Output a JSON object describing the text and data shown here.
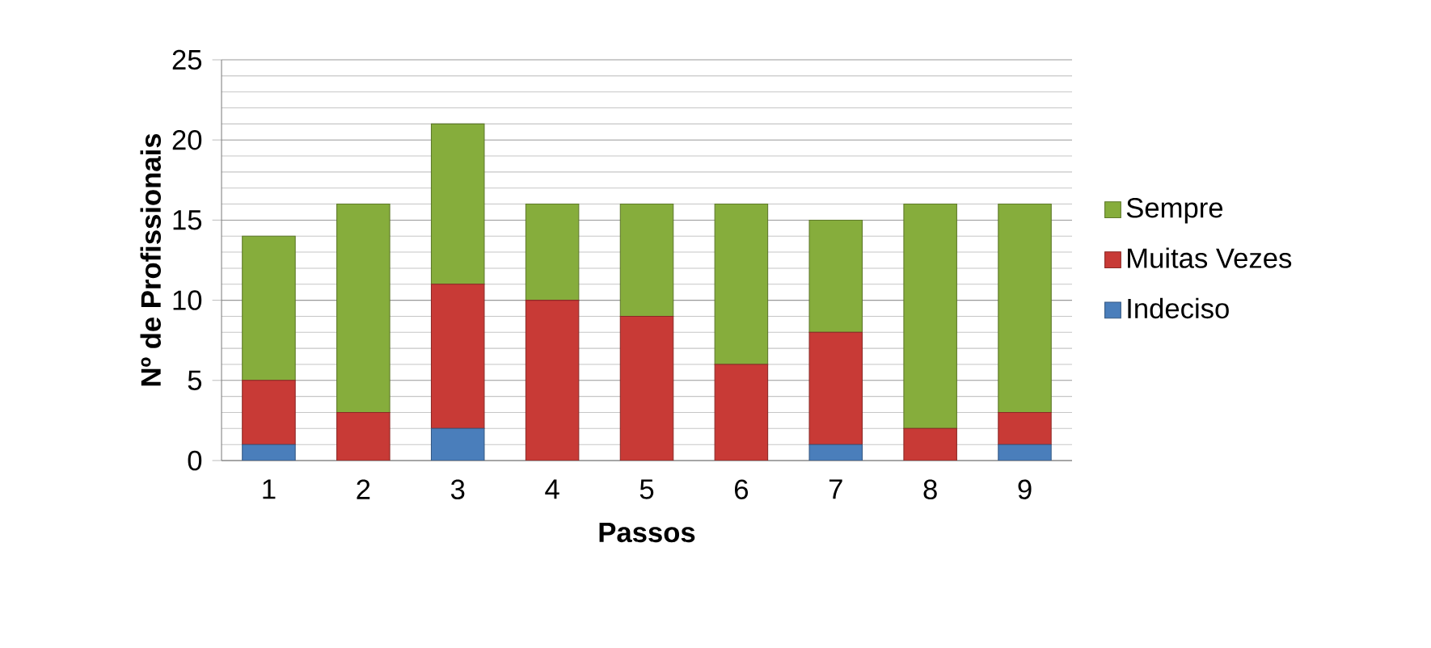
{
  "chart_data": {
    "type": "bar",
    "stacked": true,
    "xlabel": "Passos",
    "ylabel": "Nº de Profissionais",
    "categories": [
      "1",
      "2",
      "3",
      "4",
      "5",
      "6",
      "7",
      "8",
      "9"
    ],
    "series": [
      {
        "name": "Indeciso",
        "color": "#4a7ebb",
        "values": [
          1,
          0,
          2,
          0,
          0,
          0,
          1,
          0,
          1
        ]
      },
      {
        "name": "Muitas Vezes",
        "color": "#c83a36",
        "values": [
          4,
          3,
          9,
          10,
          9,
          6,
          7,
          2,
          2
        ]
      },
      {
        "name": "Sempre",
        "color": "#86ad3c",
        "values": [
          9,
          13,
          10,
          6,
          7,
          10,
          7,
          14,
          13
        ]
      }
    ],
    "ylim": [
      0,
      25
    ],
    "yticks": [
      0,
      5,
      10,
      15,
      20,
      25
    ],
    "grid": "y",
    "legend": "right"
  }
}
